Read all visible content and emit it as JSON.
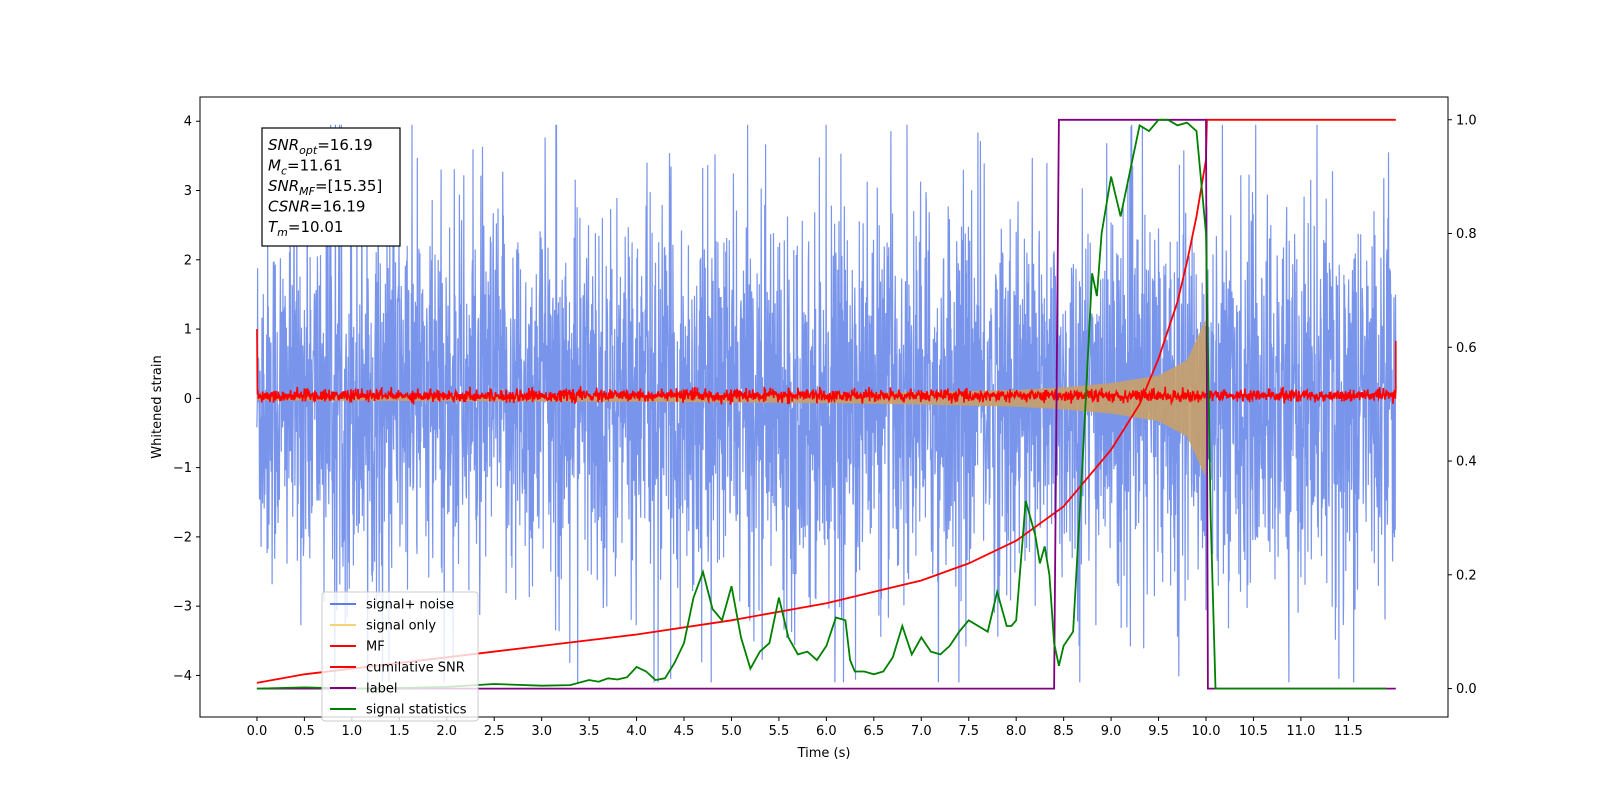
{
  "chart_data": {
    "type": "line",
    "title": "",
    "xlabel": "Time (s)",
    "ylabel": "Whitened strain",
    "xlim": [
      -0.6,
      12.55
    ],
    "ylim": [
      -4.6,
      4.35
    ],
    "y2lim": [
      -0.05,
      1.04
    ],
    "grid": false,
    "legend_position": "lower-left",
    "x_ticks": [
      "0.0",
      "0.5",
      "1.0",
      "1.5",
      "2.0",
      "2.5",
      "3.0",
      "3.5",
      "4.0",
      "4.5",
      "5.0",
      "5.5",
      "6.0",
      "6.5",
      "7.0",
      "7.5",
      "8.0",
      "8.5",
      "9.0",
      "9.5",
      "10.0",
      "10.5",
      "11.0",
      "11.5"
    ],
    "y_ticks": [
      "4",
      "3",
      "2",
      "1",
      "0",
      "−1",
      "−2",
      "−3",
      "−4"
    ],
    "y2_ticks": [
      "1.0",
      "0.8",
      "0.6",
      "0.4",
      "0.2",
      "0.0"
    ],
    "annotation": {
      "lines": [
        {
          "sym": "SNR",
          "sub": "opt",
          "value": "=16.19"
        },
        {
          "sym": "M",
          "sub": "c",
          "value": "=11.61"
        },
        {
          "sym": "SNR",
          "sub": "MF",
          "value": "=[15.35]"
        },
        {
          "sym": "CSNR",
          "sub": "",
          "value": "=16.19"
        },
        {
          "sym": "T",
          "sub": "m",
          "value": "=10.01"
        }
      ]
    },
    "series": [
      {
        "name": "signal+ noise",
        "axis": "left",
        "color": "#5b7de6",
        "description": "white noise, approx. amplitude ±4, t 0–12",
        "envelope": {
          "x": [
            0,
            12
          ],
          "amp": [
            4.0,
            4.0
          ]
        }
      },
      {
        "name": "signal only",
        "axis": "left",
        "color": "#f0c060",
        "chirp_envelope": {
          "x": [
            0,
            2,
            4,
            6,
            7,
            8,
            8.5,
            9,
            9.5,
            9.8,
            10.0,
            10.01
          ],
          "amp": [
            0.03,
            0.04,
            0.05,
            0.07,
            0.09,
            0.12,
            0.16,
            0.22,
            0.33,
            0.55,
            1.15,
            0.0
          ]
        }
      },
      {
        "name": "MF",
        "axis": "left",
        "color": "#ff0000",
        "description": "matched filter output, near 0 with noise ±0.15, spike 1.0 at t=0 and 0.83 at t=12",
        "x": [
          0,
          0.02,
          12,
          12.01
        ],
        "values": [
          1.0,
          0.05,
          0.05,
          0.83
        ]
      },
      {
        "name": "cumilative SNR",
        "axis": "right",
        "color": "#ff0000",
        "x": [
          0,
          0.5,
          1,
          2,
          3,
          4,
          5,
          6,
          7,
          7.5,
          8,
          8.5,
          9,
          9.3,
          9.5,
          9.7,
          9.8,
          9.9,
          10.0,
          10.01,
          12
        ],
        "values": [
          0.01,
          0.025,
          0.035,
          0.055,
          0.075,
          0.095,
          0.12,
          0.15,
          0.19,
          0.22,
          0.26,
          0.32,
          0.42,
          0.5,
          0.58,
          0.68,
          0.75,
          0.83,
          0.93,
          1.0,
          1.0
        ]
      },
      {
        "name": "label",
        "axis": "right",
        "color": "#800080",
        "x": [
          0,
          8.4,
          8.45,
          10.0,
          10.02,
          12
        ],
        "values": [
          0,
          0,
          1,
          1,
          0,
          0
        ]
      },
      {
        "name": "signal statistics",
        "axis": "right",
        "color": "#008000",
        "x": [
          0,
          0.5,
          1,
          1.5,
          2,
          2.5,
          3,
          3.3,
          3.5,
          3.6,
          3.7,
          3.8,
          3.9,
          4.0,
          4.1,
          4.2,
          4.3,
          4.4,
          4.5,
          4.6,
          4.7,
          4.8,
          4.9,
          5.0,
          5.1,
          5.2,
          5.3,
          5.4,
          5.5,
          5.6,
          5.7,
          5.8,
          5.9,
          6.0,
          6.1,
          6.2,
          6.25,
          6.3,
          6.4,
          6.5,
          6.6,
          6.7,
          6.8,
          6.9,
          7.0,
          7.1,
          7.2,
          7.3,
          7.4,
          7.5,
          7.6,
          7.7,
          7.8,
          7.9,
          7.95,
          8.0,
          8.1,
          8.2,
          8.25,
          8.3,
          8.35,
          8.4,
          8.45,
          8.5,
          8.6,
          8.7,
          8.8,
          8.85,
          8.9,
          9.0,
          9.1,
          9.2,
          9.3,
          9.4,
          9.5,
          9.6,
          9.7,
          9.8,
          9.9,
          10.0,
          10.05,
          10.1,
          10.2,
          10.5,
          11.0,
          11.5,
          11.9
        ],
        "values": [
          0.0,
          0.002,
          0.0,
          0.001,
          0.003,
          0.008,
          0.005,
          0.006,
          0.015,
          0.012,
          0.018,
          0.016,
          0.02,
          0.038,
          0.03,
          0.015,
          0.018,
          0.045,
          0.08,
          0.16,
          0.205,
          0.14,
          0.12,
          0.18,
          0.09,
          0.035,
          0.065,
          0.08,
          0.16,
          0.09,
          0.06,
          0.065,
          0.05,
          0.075,
          0.125,
          0.12,
          0.05,
          0.03,
          0.03,
          0.025,
          0.03,
          0.055,
          0.11,
          0.06,
          0.09,
          0.065,
          0.06,
          0.075,
          0.1,
          0.12,
          0.11,
          0.1,
          0.17,
          0.11,
          0.11,
          0.12,
          0.33,
          0.27,
          0.22,
          0.25,
          0.2,
          0.08,
          0.04,
          0.075,
          0.1,
          0.4,
          0.73,
          0.69,
          0.8,
          0.9,
          0.83,
          0.91,
          0.99,
          0.98,
          1.0,
          1.0,
          0.99,
          0.995,
          0.98,
          0.8,
          0.3,
          0.0,
          0.0,
          0.0,
          0.0,
          0.0,
          0.0
        ]
      }
    ]
  }
}
